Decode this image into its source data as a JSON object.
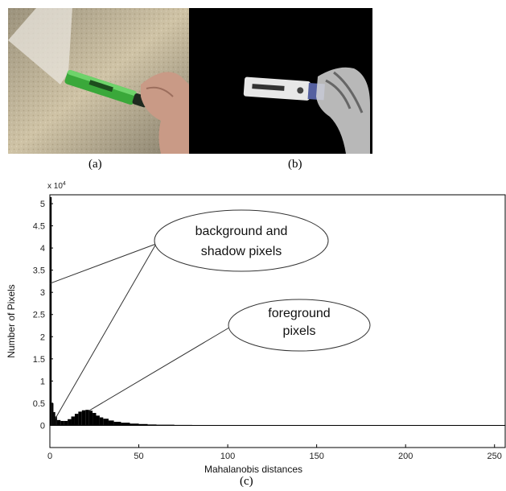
{
  "figure": {
    "panel_a": {
      "caption": "(a)",
      "description": "photo of a hand holding a green highlighter pen against a beige textured wall"
    },
    "panel_b": {
      "caption": "(b)",
      "description": "foreground segmentation mask: pen and hand shown as white speckled pixels on black"
    },
    "panel_c": {
      "caption": "(c)"
    }
  },
  "chart_data": {
    "type": "bar",
    "xlabel": "Mahalanobis distances",
    "ylabel": "Number of Pixels",
    "y_exponent_label": "x 10",
    "y_exponent": "4",
    "xlim": [
      0,
      256
    ],
    "ylim": [
      -0.5,
      5.2
    ],
    "x_ticks": [
      "0",
      "50",
      "100",
      "150",
      "200",
      "250"
    ],
    "x_tick_values": [
      0,
      50,
      100,
      150,
      200,
      250
    ],
    "y_ticks": [
      "0",
      "0.5",
      "1",
      "1.5",
      "2",
      "2.5",
      "3",
      "3.5",
      "4",
      "4.5",
      "5"
    ],
    "y_tick_values": [
      0,
      0.5,
      1,
      1.5,
      2,
      2.5,
      3,
      3.5,
      4,
      4.5,
      5
    ],
    "x": [
      0,
      1,
      2,
      3,
      4,
      6,
      8,
      10,
      12,
      14,
      16,
      18,
      20,
      22,
      24,
      26,
      28,
      30,
      33,
      36,
      40,
      45,
      50,
      55,
      60,
      70,
      80,
      100,
      120,
      150,
      170
    ],
    "values": [
      5.15,
      0.5,
      0.3,
      0.2,
      0.12,
      0.1,
      0.1,
      0.14,
      0.2,
      0.26,
      0.31,
      0.34,
      0.35,
      0.33,
      0.28,
      0.22,
      0.18,
      0.15,
      0.11,
      0.08,
      0.06,
      0.04,
      0.03,
      0.02,
      0.015,
      0.01,
      0.006,
      0.004,
      0.003,
      0.002,
      0.001
    ],
    "annotations": [
      {
        "id": "bg",
        "lines": [
          "background and",
          "shadow pixels"
        ],
        "targets": [
          [
            0,
            3.2
          ],
          [
            3,
            0.15
          ]
        ]
      },
      {
        "id": "fg",
        "lines": [
          "foreground",
          "pixels"
        ],
        "targets": [
          [
            22,
            0.33
          ]
        ]
      }
    ]
  }
}
